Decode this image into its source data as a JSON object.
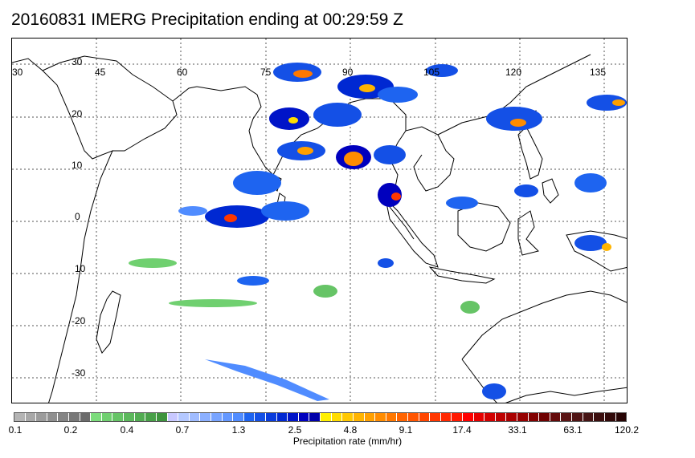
{
  "title": "20160831 IMERG Precipitation ending at 00:29:59 Z",
  "map": {
    "lon_labels": [
      "30",
      "45",
      "60",
      "75",
      "90",
      "105",
      "120",
      "135"
    ],
    "lat_labels": [
      "30",
      "20",
      "10",
      "0",
      "10",
      "-20",
      "-30"
    ],
    "land_color": "#000000",
    "grid_color": "#555555"
  },
  "colorbar": {
    "label": "Precipitation rate (mm/hr)",
    "ticks": [
      "0.1",
      "0.2",
      "0.4",
      "0.7",
      "1.3",
      "2.5",
      "4.8",
      "9.1",
      "17.4",
      "33.1",
      "63.1",
      "120.2"
    ],
    "colors": [
      "#b4b4b4",
      "#a8a8a8",
      "#9c9c9c",
      "#909090",
      "#848484",
      "#787878",
      "#6c6c6c",
      "#7cdc7c",
      "#70d070",
      "#66c466",
      "#5cb85c",
      "#52ac52",
      "#48a048",
      "#3e943e",
      "#c8c8ff",
      "#b4c8ff",
      "#a0bcff",
      "#8cb0ff",
      "#78a4ff",
      "#6498ff",
      "#508cff",
      "#1e64f0",
      "#1450e6",
      "#0a3cdc",
      "#0028d2",
      "#0014c8",
      "#0000be",
      "#0000aa",
      "#fff000",
      "#ffdc00",
      "#ffc800",
      "#ffb400",
      "#ffa000",
      "#ff8c00",
      "#ff7800",
      "#ff6400",
      "#ff5500",
      "#ff4600",
      "#ff3700",
      "#ff2800",
      "#ff1900",
      "#ff0000",
      "#e60000",
      "#d20000",
      "#be0000",
      "#aa0000",
      "#960000",
      "#820000",
      "#6e0000",
      "#640a0a",
      "#5a1414",
      "#501414",
      "#461414",
      "#3c0f0f",
      "#320a0a",
      "#280505"
    ]
  }
}
